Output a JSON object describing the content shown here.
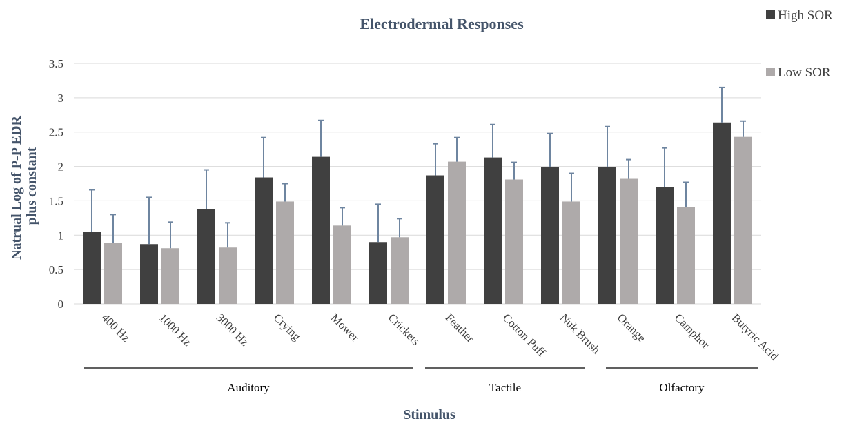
{
  "chart_data": {
    "type": "bar",
    "title": "Electrodermal Responses",
    "xlabel": "Stimulus",
    "ylabel_lines": [
      "Natrual Log of P-P EDR",
      "plus constant"
    ],
    "ylim": [
      0,
      3.5
    ],
    "yticks": [
      "0",
      "0.5",
      "1",
      "1.5",
      "2",
      "2.5",
      "3",
      "3.5"
    ],
    "grid": true,
    "legend_position": "top-right",
    "categories": [
      "400 Hz",
      "1000 Hz",
      "3000 Hz",
      "Crying",
      "Mower",
      "Crickets",
      "Feather",
      "Cotton Puff",
      "Nuk Brush",
      "Orange",
      "Camphor",
      "Butyric Acid"
    ],
    "series": [
      {
        "name": "High SOR",
        "color": "#404040",
        "values": [
          1.05,
          0.87,
          1.38,
          1.84,
          2.14,
          0.9,
          1.87,
          2.13,
          1.99,
          1.99,
          1.7,
          2.64
        ],
        "error_upper": [
          1.66,
          1.55,
          1.95,
          2.42,
          2.67,
          1.45,
          2.33,
          2.61,
          2.48,
          2.58,
          2.27,
          3.15
        ]
      },
      {
        "name": "Low SOR",
        "color": "#aeaaaa",
        "values": [
          0.89,
          0.81,
          0.82,
          1.49,
          1.14,
          0.97,
          2.07,
          1.81,
          1.49,
          1.82,
          1.41,
          2.43
        ],
        "error_upper": [
          1.3,
          1.19,
          1.18,
          1.75,
          1.4,
          1.24,
          2.42,
          2.06,
          1.9,
          2.1,
          1.77,
          2.66
        ]
      }
    ],
    "groups": [
      {
        "label": "Auditory",
        "start": 0,
        "end": 5
      },
      {
        "label": "Tactile",
        "start": 6,
        "end": 8
      },
      {
        "label": "Olfactory",
        "start": 9,
        "end": 11
      }
    ],
    "error_bar_color": "#6e85a0",
    "gridline_color": "#d9d9d9"
  }
}
